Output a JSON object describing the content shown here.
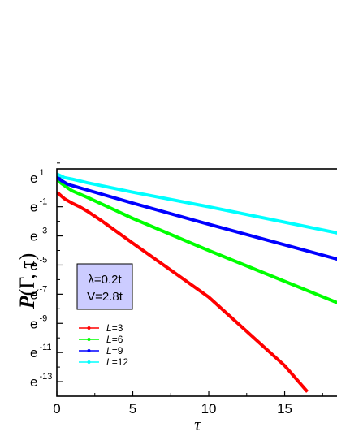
{
  "chart_data": {
    "type": "line",
    "xlabel": "τ",
    "ylabel": "P(Γ, τ)",
    "y_scale": "natural-log",
    "xlim": [
      0,
      18.5
    ],
    "ylim_exponent": [
      -14,
      1.6
    ],
    "x_ticks": [
      "0",
      "5",
      "10",
      "15"
    ],
    "y_ticks": [
      {
        "base": "e",
        "exp": "1"
      },
      {
        "base": "e",
        "exp": "-1"
      },
      {
        "base": "e",
        "exp": "-3"
      },
      {
        "base": "e",
        "exp": "-5"
      },
      {
        "base": "e",
        "exp": "-7"
      },
      {
        "base": "e",
        "exp": "-9"
      },
      {
        "base": "e",
        "exp": "-11"
      },
      {
        "base": "e",
        "exp": "-13"
      }
    ],
    "annotation": {
      "line1": "λ=0.2t",
      "line2": "V=2.8t"
    },
    "legend_position": "bottom-left",
    "series": [
      {
        "name": "L=3",
        "color": "#ff0000",
        "exp_x": [
          0,
          0.5,
          1,
          1.5,
          2,
          3,
          5,
          10,
          15,
          16.5
        ],
        "exp_y": [
          0.0,
          -0.45,
          -0.75,
          -1.0,
          -1.3,
          -2.0,
          -3.5,
          -7.2,
          -11.9,
          -13.7
        ]
      },
      {
        "name": "L=6",
        "color": "#00ff00",
        "exp_x": [
          0,
          0.3,
          0.7,
          1,
          2,
          5,
          10,
          18.5
        ],
        "exp_y": [
          0.9,
          0.6,
          0.3,
          0.1,
          -0.35,
          -1.8,
          -4.0,
          -7.6
        ]
      },
      {
        "name": "L=9",
        "color": "#0000ff",
        "exp_x": [
          0,
          0.3,
          0.7,
          1,
          2,
          5,
          10,
          18.5
        ],
        "exp_y": [
          1.05,
          0.8,
          0.55,
          0.45,
          0.15,
          -0.75,
          -2.2,
          -4.6
        ]
      },
      {
        "name": "L=12",
        "color": "#00ffff",
        "exp_x": [
          0,
          0.5,
          1,
          2,
          5,
          10,
          18.5
        ],
        "exp_y": [
          1.25,
          1.0,
          0.9,
          0.65,
          0.0,
          -1.0,
          -2.8
        ]
      }
    ]
  }
}
